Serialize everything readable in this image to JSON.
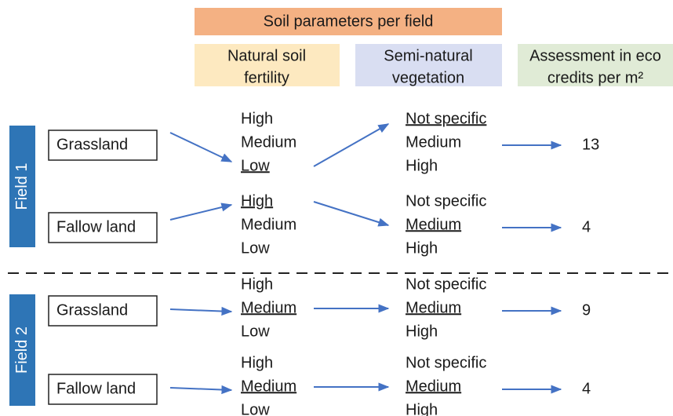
{
  "header": {
    "title": "Soil parameters per field"
  },
  "columns": [
    {
      "lines": [
        "Natural soil",
        "fertility"
      ]
    },
    {
      "lines": [
        "Semi-natural",
        "vegetation"
      ]
    },
    {
      "lines": [
        "Assessment in eco",
        "credits per m²"
      ]
    }
  ],
  "fields": [
    {
      "label": "Field 1",
      "rows": [
        {
          "land": "Grassland",
          "fertility": [
            {
              "text": "High",
              "underlined": false
            },
            {
              "text": "Medium",
              "underlined": false
            },
            {
              "text": "Low",
              "underlined": true
            }
          ],
          "vegetation": [
            {
              "text": "Not specific",
              "underlined": true
            },
            {
              "text": "Medium",
              "underlined": false
            },
            {
              "text": "High",
              "underlined": false
            }
          ],
          "credits": "13"
        },
        {
          "land": "Fallow land",
          "fertility": [
            {
              "text": "High",
              "underlined": true
            },
            {
              "text": "Medium",
              "underlined": false
            },
            {
              "text": "Low",
              "underlined": false
            }
          ],
          "vegetation": [
            {
              "text": "Not specific",
              "underlined": false
            },
            {
              "text": "Medium",
              "underlined": true
            },
            {
              "text": "High",
              "underlined": false
            }
          ],
          "credits": "4"
        }
      ]
    },
    {
      "label": "Field 2",
      "rows": [
        {
          "land": "Grassland",
          "fertility": [
            {
              "text": "High",
              "underlined": false
            },
            {
              "text": "Medium",
              "underlined": true
            },
            {
              "text": "Low",
              "underlined": false
            }
          ],
          "vegetation": [
            {
              "text": "Not specific",
              "underlined": false
            },
            {
              "text": "Medium",
              "underlined": true
            },
            {
              "text": "High",
              "underlined": false
            }
          ],
          "credits": "9"
        },
        {
          "land": "Fallow land",
          "fertility": [
            {
              "text": "High",
              "underlined": false
            },
            {
              "text": "Medium",
              "underlined": true
            },
            {
              "text": "Low",
              "underlined": false
            }
          ],
          "vegetation": [
            {
              "text": "Not specific",
              "underlined": false
            },
            {
              "text": "Medium",
              "underlined": true
            },
            {
              "text": "High",
              "underlined": false
            }
          ],
          "credits": "4"
        }
      ]
    }
  ]
}
